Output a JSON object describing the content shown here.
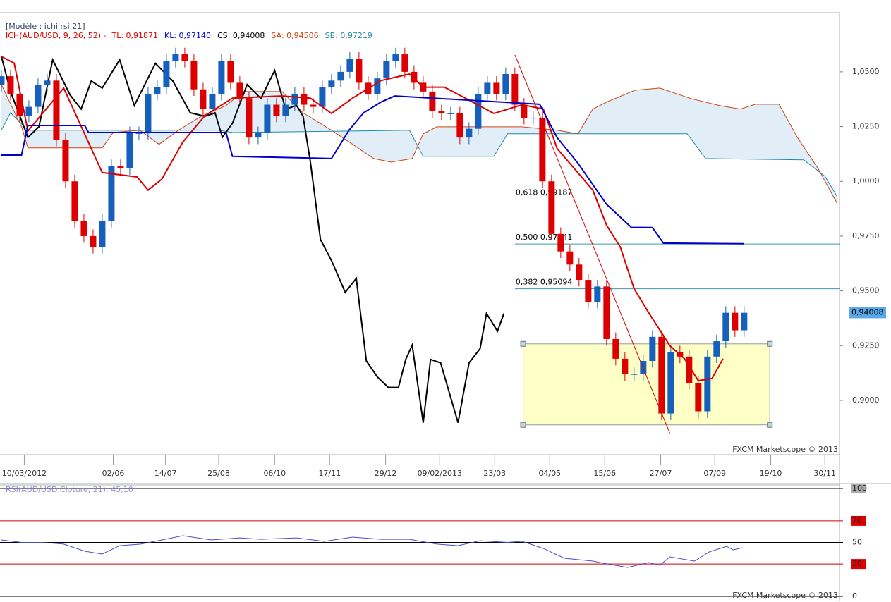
{
  "chart_data": [
    {
      "type": "candlestick",
      "header": "[Modèle : ichi rsi 21]",
      "legend": [
        {
          "text": "ICH(AUD/USD, 9, 26, 52) -",
          "color": "#dd0000"
        },
        {
          "text": "TL: 0,91871",
          "color": "#dd0000"
        },
        {
          "text": "KL: 0,97140",
          "color": "#0000cc"
        },
        {
          "text": "CS: 0,94008",
          "color": "#000000"
        },
        {
          "text": "SA: 0,94506",
          "color": "#cc4411"
        },
        {
          "text": "SB: 0,97219",
          "color": "#2288aa"
        }
      ],
      "watermark": "FXCM Marketscope © 2013",
      "up_color": "#1560bd",
      "down_color": "#dd0000",
      "xlim": [
        -0.15,
        91.4
      ],
      "xticks": [
        {
          "value": 2.5,
          "label": "10/03/2012"
        },
        {
          "value": 12.2,
          "label": "02/06"
        },
        {
          "value": 17.9,
          "label": "14/07"
        },
        {
          "value": 23.7,
          "label": "25/08"
        },
        {
          "value": 29.8,
          "label": "06/10"
        },
        {
          "value": 35.8,
          "label": "17/11"
        },
        {
          "value": 41.9,
          "label": "29/12"
        },
        {
          "value": 47.8,
          "label": "09/02/2013"
        },
        {
          "value": 53.8,
          "label": "23/03"
        },
        {
          "value": 59.8,
          "label": "04/05"
        },
        {
          "value": 65.8,
          "label": "15/06"
        },
        {
          "value": 71.9,
          "label": "27/07"
        },
        {
          "value": 77.8,
          "label": "07/09"
        },
        {
          "value": 83.9,
          "label": "19/10"
        },
        {
          "value": 89.8,
          "label": "30/11"
        }
      ],
      "ylim": [
        0.8752,
        1.077
      ],
      "yticks": [
        {
          "value": 1.05,
          "label": "1,0500"
        },
        {
          "value": 1.025,
          "label": "1,0250"
        },
        {
          "value": 1.0,
          "label": "1,0000"
        },
        {
          "value": 0.975,
          "label": "0,9750"
        },
        {
          "value": 0.95,
          "label": "0,9500"
        },
        {
          "value": 0.925,
          "label": "0,9250"
        },
        {
          "value": 0.9,
          "label": "0,9000"
        }
      ],
      "x": [
        0,
        1,
        2,
        3,
        4,
        5,
        6,
        7,
        8,
        9,
        10,
        11,
        12,
        13,
        14,
        15,
        16,
        17,
        18,
        19,
        20,
        21,
        22,
        23,
        24,
        25,
        26,
        27,
        28,
        29,
        30,
        31,
        32,
        33,
        34,
        35,
        36,
        37,
        38,
        39,
        40,
        41,
        42,
        43,
        44,
        45,
        46,
        47,
        48,
        49,
        50,
        51,
        52,
        53,
        54,
        55,
        56,
        57,
        58,
        59,
        60,
        61,
        62,
        63,
        64,
        65,
        66,
        67,
        68,
        69,
        70,
        71,
        72,
        73,
        74,
        75,
        76,
        77,
        78,
        79,
        80,
        81
      ],
      "open": [
        1.044,
        1.048,
        1.04,
        1.03,
        1.034,
        1.044,
        1.046,
        1.019,
        1.0,
        0.982,
        0.975,
        0.97,
        0.982,
        1.007,
        1.006,
        1.022,
        1.022,
        1.04,
        1.043,
        1.055,
        1.058,
        1.055,
        1.042,
        1.033,
        1.04,
        1.055,
        1.045,
        1.038,
        1.02,
        1.022,
        1.035,
        1.03,
        1.035,
        1.04,
        1.035,
        1.034,
        1.043,
        1.046,
        1.05,
        1.056,
        1.045,
        1.04,
        1.047,
        1.055,
        1.058,
        1.05,
        1.045,
        1.041,
        1.032,
        1.031,
        1.031,
        1.02,
        1.024,
        1.04,
        1.045,
        1.04,
        1.049,
        1.035,
        1.029,
        1.029,
        1.0,
        0.976,
        0.968,
        0.962,
        0.955,
        0.945,
        0.952,
        0.928,
        0.919,
        0.912,
        0.912,
        0.918,
        0.929,
        0.894,
        0.922,
        0.92,
        0.908,
        0.895,
        0.92,
        0.927,
        0.94,
        0.932
      ],
      "high": [
        1.051,
        1.051,
        1.043,
        1.037,
        1.047,
        1.049,
        1.049,
        1.022,
        1.003,
        0.985,
        0.978,
        0.985,
        1.01,
        1.01,
        1.025,
        1.025,
        1.043,
        1.046,
        1.058,
        1.061,
        1.061,
        1.058,
        1.045,
        1.043,
        1.058,
        1.058,
        1.048,
        1.041,
        1.025,
        1.038,
        1.038,
        1.038,
        1.043,
        1.043,
        1.038,
        1.046,
        1.049,
        1.053,
        1.059,
        1.059,
        1.048,
        1.05,
        1.058,
        1.061,
        1.061,
        1.053,
        1.048,
        1.044,
        1.035,
        1.034,
        1.034,
        1.027,
        1.043,
        1.048,
        1.048,
        1.052,
        1.052,
        1.038,
        1.032,
        1.032,
        1.003,
        0.979,
        0.971,
        0.965,
        0.958,
        0.955,
        0.955,
        0.931,
        0.922,
        0.915,
        0.921,
        0.932,
        0.932,
        0.925,
        0.925,
        0.923,
        0.911,
        0.923,
        0.93,
        0.943,
        0.943,
        0.943
      ],
      "low": [
        1.041,
        1.037,
        1.027,
        1.027,
        1.031,
        1.041,
        1.016,
        0.997,
        0.979,
        0.972,
        0.967,
        0.967,
        0.979,
        1.003,
        1.003,
        1.019,
        1.019,
        1.037,
        1.04,
        1.052,
        1.052,
        1.039,
        1.03,
        1.03,
        1.037,
        1.042,
        1.035,
        1.017,
        1.017,
        1.019,
        1.027,
        1.027,
        1.032,
        1.032,
        1.031,
        1.031,
        1.04,
        1.043,
        1.047,
        1.042,
        1.037,
        1.037,
        1.044,
        1.052,
        1.047,
        1.042,
        1.038,
        1.029,
        1.028,
        1.028,
        1.017,
        1.017,
        1.021,
        1.037,
        1.037,
        1.037,
        1.032,
        1.026,
        1.026,
        0.997,
        0.973,
        0.965,
        0.959,
        0.952,
        0.942,
        0.942,
        0.925,
        0.916,
        0.909,
        0.909,
        0.909,
        0.915,
        0.891,
        0.891,
        0.917,
        0.905,
        0.892,
        0.892,
        0.917,
        0.924,
        0.929,
        0.929
      ],
      "close": [
        1.048,
        1.04,
        1.03,
        1.034,
        1.044,
        1.046,
        1.019,
        1.0,
        0.982,
        0.975,
        0.97,
        0.982,
        1.007,
        1.006,
        1.022,
        1.022,
        1.04,
        1.043,
        1.055,
        1.058,
        1.055,
        1.042,
        1.033,
        1.04,
        1.055,
        1.045,
        1.038,
        1.02,
        1.022,
        1.035,
        1.03,
        1.035,
        1.04,
        1.035,
        1.034,
        1.043,
        1.046,
        1.05,
        1.056,
        1.045,
        1.04,
        1.047,
        1.055,
        1.058,
        1.05,
        1.045,
        1.041,
        1.032,
        1.031,
        1.031,
        1.02,
        1.024,
        1.04,
        1.045,
        1.04,
        1.049,
        1.035,
        1.029,
        1.029,
        1.0,
        0.976,
        0.968,
        0.962,
        0.955,
        0.945,
        0.952,
        0.928,
        0.919,
        0.912,
        0.912,
        0.918,
        0.929,
        0.894,
        0.922,
        0.92,
        0.908,
        0.895,
        0.92,
        0.927,
        0.94,
        0.932,
        0.94
      ],
      "series": [
        {
          "color": "#dd0000",
          "x": [
            0,
            1.4,
            2.9,
            6.8,
            11.0,
            14.8,
            16.0,
            17.5,
            19.8,
            22.2,
            25.2,
            30.6,
            33.7,
            36.0,
            38.3,
            41.4,
            44.5,
            46.0,
            48.3,
            50.6,
            53.7,
            56.8,
            59.1,
            60.6,
            64.5,
            66.0,
            67.5,
            69.0,
            70.6,
            72.9,
            74.5,
            76.0,
            77.5,
            78.7
          ],
          "values": [
            1.057,
            1.054,
            1.023,
            1.0426,
            1.004,
            1.002,
            0.996,
            1.001,
            1.018,
            1.03,
            1.038,
            1.039,
            1.038,
            1.031,
            1.038,
            1.046,
            1.049,
            1.043,
            1.043,
            1.038,
            1.031,
            1.035,
            1.033,
            1.015,
            0.996,
            0.98,
            0.97,
            0.951,
            0.94,
            0.925,
            0.919,
            0.909,
            0.91,
            0.919
          ]
        },
        {
          "color": "#0000cc",
          "x": [
            0,
            2.2,
            2.9,
            9.1,
            9.5,
            24.5,
            25.2,
            36.0,
            37.9,
            39.5,
            41.4,
            42.9,
            58.7,
            60.6,
            62.9,
            66.0,
            68.7,
            71.0,
            72.2,
            81.0
          ],
          "values": [
            1.012,
            1.012,
            1.0255,
            1.0255,
            1.0223,
            1.0223,
            1.0114,
            1.0104,
            1.0233,
            1.0313,
            1.0362,
            1.039,
            1.0352,
            1.02,
            1.0082,
            0.9895,
            0.979,
            0.9789,
            0.9718,
            0.9715
          ]
        },
        {
          "color": "#000000",
          "x": [
            0,
            1.0,
            2.9,
            4.1,
            5.6,
            7.5,
            8.7,
            9.8,
            11.0,
            12.9,
            14.5,
            16.8,
            18.7,
            20.6,
            22.2,
            23.3,
            24.1,
            25.2,
            26.8,
            28.3,
            29.8,
            31.0,
            32.2,
            32.9,
            33.7,
            34.8,
            36.0,
            37.5,
            38.7,
            39.8,
            41.0,
            42.2,
            43.3,
            44.1,
            44.8,
            46.0,
            46.8,
            47.9,
            49.8,
            51.0,
            52.2,
            52.9,
            54.1,
            54.8
          ],
          "values": [
            1.0571,
            1.041,
            1.0201,
            1.0249,
            1.0555,
            1.0394,
            1.033,
            1.0458,
            1.0426,
            1.0555,
            1.0346,
            1.0539,
            1.0458,
            1.0313,
            1.0297,
            1.0313,
            1.0201,
            1.0265,
            1.0442,
            1.0378,
            1.0506,
            1.033,
            1.0346,
            1.0297,
            1.0088,
            0.9734,
            0.9638,
            0.9493,
            0.9557,
            0.918,
            0.9107,
            0.9059,
            0.9059,
            0.9187,
            0.9252,
            0.8898,
            0.9187,
            0.9171,
            0.8898,
            0.9171,
            0.9236,
            0.9397,
            0.9316,
            0.9397
          ]
        },
        {
          "color": "#cc4411",
          "x": [
            0,
            2.2,
            2.9,
            11.0,
            12.2,
            15.1,
            17.2,
            19.3,
            21.8,
            24.5,
            26.4,
            29.1,
            30.6,
            32.9,
            36.0,
            38.3,
            40.6,
            42.5,
            44.8,
            46.0,
            47.5,
            53.7,
            56.8,
            60.6,
            62.9,
            64.5,
            66.0,
            69.1,
            71.8,
            75.2,
            78.3,
            80.6,
            82.2,
            84.8,
            86.8,
            89.1,
            91.2
          ],
          "values": [
            1.0442,
            1.0249,
            1.0153,
            1.0153,
            1.0223,
            1.0233,
            1.0169,
            1.0233,
            1.0297,
            1.0346,
            1.041,
            1.041,
            1.041,
            1.0313,
            1.0233,
            1.0169,
            1.0104,
            1.0088,
            1.0104,
            1.0217,
            1.0249,
            1.0249,
            1.0249,
            1.0233,
            1.0217,
            1.033,
            1.0362,
            1.0416,
            1.0426,
            1.0378,
            1.0346,
            1.033,
            1.0352,
            1.0352,
            1.0201,
            1.0056,
            0.9895
          ]
        },
        {
          "color": "#2288aa",
          "x": [
            0,
            1.0,
            2.9,
            23.7,
            25.2,
            44.5,
            46.0,
            53.7,
            55.2,
            74.8,
            76.8,
            87.5,
            89.8,
            91.2
          ],
          "values": [
            1.0233,
            1.0313,
            1.0233,
            1.0233,
            1.0223,
            1.0233,
            1.0114,
            1.0114,
            1.0217,
            1.0217,
            1.0104,
            1.0098,
            1.0024,
            0.9927
          ]
        }
      ],
      "cloud_fill": "#dcebf6",
      "fib_levels": [
        {
          "value": 0.99187,
          "label": "0,618 0,99187"
        },
        {
          "value": 0.97141,
          "label": "0,500 0,97141"
        },
        {
          "value": 0.95094,
          "label": "0,382 0,95094"
        }
      ],
      "fib_start": 56,
      "fib_color": "#3a9aa8",
      "rectangle": {
        "x": [
          56.9,
          83.8
        ],
        "y": [
          0.8888,
          0.9258
        ],
        "fill": "#ffffc8"
      },
      "trendline": {
        "x": [
          56,
          72.9
        ],
        "values": [
          1.0577,
          0.885
        ],
        "color": "#dd0000"
      },
      "last_price": {
        "value": 0.94008,
        "label": "0,94008",
        "color": "#5aaaea"
      }
    },
    {
      "type": "line",
      "label": "RSI(AUD/USD.Cloture, 21): 45,10",
      "watermark": "FXCM Marketscope © 2013",
      "color": "#4a4acc",
      "xlim": [
        -0.15,
        91.4
      ],
      "ylim": [
        0,
        100
      ],
      "yticks": [
        100,
        70,
        50,
        30,
        0
      ],
      "tick_colors": [
        "#000000",
        "#cc0000",
        "#000000",
        "#cc0000",
        "#000000"
      ],
      "tick_label_fills": [
        "#aaaaaa",
        "#dd0000",
        "#ffffff",
        "#dd0000",
        "#ffffff"
      ],
      "x": [
        0,
        2.2,
        4.5,
        6.8,
        9.1,
        11.0,
        12.9,
        15.2,
        17.5,
        19.8,
        22.9,
        26.0,
        28.3,
        32.2,
        35.2,
        38.3,
        41.4,
        44.5,
        47.5,
        49.8,
        52.2,
        55.2,
        56.8,
        59.1,
        61.4,
        64.5,
        66.0,
        68.3,
        70.6,
        71.8,
        72.9,
        75.6,
        77.2,
        79.1,
        79.8,
        80.8
      ],
      "values": [
        52.3,
        50,
        50,
        48.4,
        41.8,
        39.2,
        47,
        48.4,
        52.3,
        56.2,
        52.3,
        54.2,
        52.9,
        54.2,
        51,
        54.9,
        52.9,
        52.9,
        48.4,
        47,
        51.6,
        50,
        51,
        44.4,
        35.3,
        32.7,
        30.1,
        26.8,
        31.4,
        28.8,
        36.6,
        32.7,
        41.2,
        46.4,
        43.1,
        45.1
      ]
    }
  ]
}
